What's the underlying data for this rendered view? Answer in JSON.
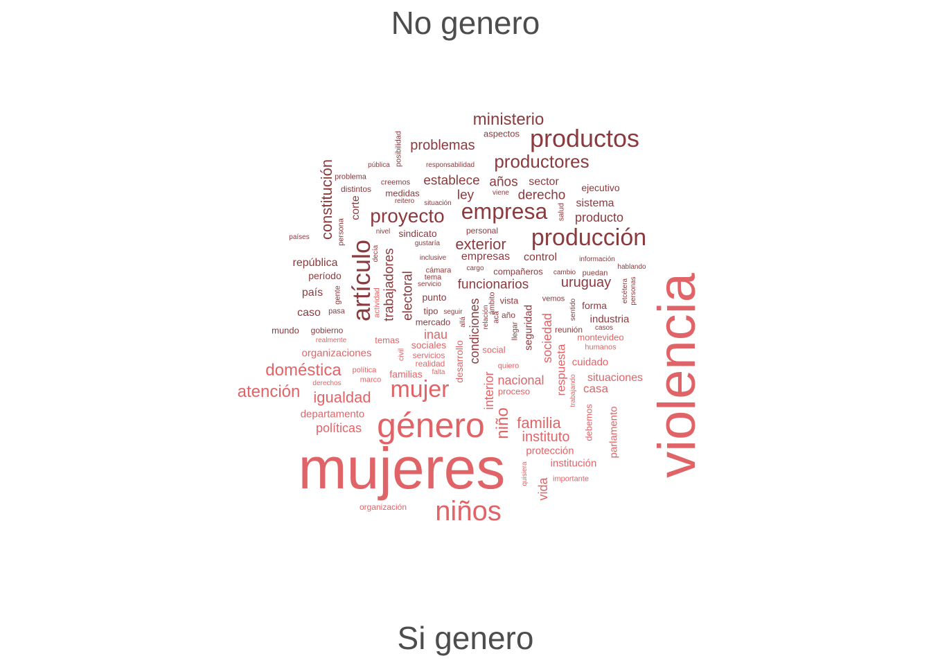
{
  "titles": {
    "top": "No genero",
    "bottom": "Si genero"
  },
  "colors": {
    "no_genero": "#8b3a3e",
    "si_genero": "#e06467",
    "title": "#4d4d4d"
  },
  "words": [
    {
      "t": "violencia",
      "g": "si",
      "s": 76,
      "r": 1
    },
    {
      "t": "mujeres",
      "g": "si",
      "s": 84,
      "r": 0
    },
    {
      "t": "género",
      "g": "si",
      "s": 50,
      "r": 0
    },
    {
      "t": "niños",
      "g": "si",
      "s": 40,
      "r": 0
    },
    {
      "t": "mujer",
      "g": "si",
      "s": 34,
      "r": 0
    },
    {
      "t": "doméstica",
      "g": "si",
      "s": 24,
      "r": 0
    },
    {
      "t": "atención",
      "g": "si",
      "s": 24,
      "r": 0
    },
    {
      "t": "igualdad",
      "g": "si",
      "s": 22,
      "r": 0
    },
    {
      "t": "familia",
      "g": "si",
      "s": 22,
      "r": 0
    },
    {
      "t": "niño",
      "g": "si",
      "s": 24,
      "r": 1
    },
    {
      "t": "instituto",
      "g": "si",
      "s": 20,
      "r": 0
    },
    {
      "t": "políticas",
      "g": "si",
      "s": 18,
      "r": 0
    },
    {
      "t": "inau",
      "g": "si",
      "s": 18,
      "r": 0
    },
    {
      "t": "departamento",
      "g": "si",
      "s": 15,
      "r": 0
    },
    {
      "t": "organizaciones",
      "g": "si",
      "s": 15,
      "r": 0
    },
    {
      "t": "protección",
      "g": "si",
      "s": 15,
      "r": 0
    },
    {
      "t": "institución",
      "g": "si",
      "s": 15,
      "r": 0
    },
    {
      "t": "vida",
      "g": "si",
      "s": 18,
      "r": 1
    },
    {
      "t": "interior",
      "g": "si",
      "s": 18,
      "r": 1
    },
    {
      "t": "nacional",
      "g": "si",
      "s": 18,
      "r": 0
    },
    {
      "t": "sociedad",
      "g": "si",
      "s": 18,
      "r": 1
    },
    {
      "t": "respuesta",
      "g": "si",
      "s": 17,
      "r": 1
    },
    {
      "t": "situaciones",
      "g": "si",
      "s": 16,
      "r": 0
    },
    {
      "t": "casa",
      "g": "si",
      "s": 17,
      "r": 0
    },
    {
      "t": "cuidado",
      "g": "si",
      "s": 15,
      "r": 0
    },
    {
      "t": "parlamento",
      "g": "si",
      "s": 15,
      "r": 1
    },
    {
      "t": "montevideo",
      "g": "si",
      "s": 13,
      "r": 0
    },
    {
      "t": "familias",
      "g": "si",
      "s": 14,
      "r": 0
    },
    {
      "t": "sociales",
      "g": "si",
      "s": 14,
      "r": 0
    },
    {
      "t": "temas",
      "g": "si",
      "s": 13,
      "r": 0
    },
    {
      "t": "social",
      "g": "si",
      "s": 13,
      "r": 0
    },
    {
      "t": "servicios",
      "g": "si",
      "s": 12,
      "r": 0
    },
    {
      "t": "realidad",
      "g": "si",
      "s": 12,
      "r": 0
    },
    {
      "t": "desarrollo",
      "g": "si",
      "s": 14,
      "r": 1
    },
    {
      "t": "proceso",
      "g": "si",
      "s": 13,
      "r": 0
    },
    {
      "t": "quiero",
      "g": "si",
      "s": 11,
      "r": 0
    },
    {
      "t": "política",
      "g": "si",
      "s": 11,
      "r": 0
    },
    {
      "t": "marco",
      "g": "si",
      "s": 11,
      "r": 0
    },
    {
      "t": "derechos",
      "g": "si",
      "s": 10,
      "r": 0
    },
    {
      "t": "falta",
      "g": "si",
      "s": 10,
      "r": 0
    },
    {
      "t": "civil",
      "g": "si",
      "s": 11,
      "r": 1
    },
    {
      "t": "organización",
      "g": "si",
      "s": 12,
      "r": 0
    },
    {
      "t": "importante",
      "g": "si",
      "s": 11,
      "r": 0
    },
    {
      "t": "quisiera",
      "g": "si",
      "s": 10,
      "r": 1
    },
    {
      "t": "debemos",
      "g": "si",
      "s": 13,
      "r": 1
    },
    {
      "t": "trabajando",
      "g": "si",
      "s": 10,
      "r": 1
    },
    {
      "t": "humanos",
      "g": "si",
      "s": 11,
      "r": 0
    },
    {
      "t": "realmente",
      "g": "si",
      "s": 10,
      "r": 0
    },
    {
      "t": "actividad",
      "g": "si",
      "s": 11,
      "r": 1
    },
    {
      "t": "productos",
      "g": "no",
      "s": 36,
      "r": 0
    },
    {
      "t": "producción",
      "g": "no",
      "s": 34,
      "r": 0
    },
    {
      "t": "empresa",
      "g": "no",
      "s": 32,
      "r": 0
    },
    {
      "t": "artículo",
      "g": "no",
      "s": 36,
      "r": 1
    },
    {
      "t": "proyecto",
      "g": "no",
      "s": 28,
      "r": 0
    },
    {
      "t": "productores",
      "g": "no",
      "s": 26,
      "r": 0
    },
    {
      "t": "ministerio",
      "g": "no",
      "s": 24,
      "r": 0
    },
    {
      "t": "constitución",
      "g": "no",
      "s": 22,
      "r": 1
    },
    {
      "t": "exterior",
      "g": "no",
      "s": 22,
      "r": 0
    },
    {
      "t": "problemas",
      "g": "no",
      "s": 20,
      "r": 0
    },
    {
      "t": "establece",
      "g": "no",
      "s": 19,
      "r": 0
    },
    {
      "t": "funcionarios",
      "g": "no",
      "s": 19,
      "r": 0
    },
    {
      "t": "uruguay",
      "g": "no",
      "s": 20,
      "r": 0
    },
    {
      "t": "años",
      "g": "no",
      "s": 19,
      "r": 0
    },
    {
      "t": "ley",
      "g": "no",
      "s": 19,
      "r": 0
    },
    {
      "t": "derecho",
      "g": "no",
      "s": 19,
      "r": 0
    },
    {
      "t": "trabajadores",
      "g": "no",
      "s": 19,
      "r": 1
    },
    {
      "t": "electoral",
      "g": "no",
      "s": 19,
      "r": 1
    },
    {
      "t": "condiciones",
      "g": "no",
      "s": 18,
      "r": 1
    },
    {
      "t": "producto",
      "g": "no",
      "s": 18,
      "r": 0
    },
    {
      "t": "sector",
      "g": "no",
      "s": 16,
      "r": 0
    },
    {
      "t": "sistema",
      "g": "no",
      "s": 16,
      "r": 0
    },
    {
      "t": "empresas",
      "g": "no",
      "s": 16,
      "r": 0
    },
    {
      "t": "control",
      "g": "no",
      "s": 16,
      "r": 0
    },
    {
      "t": "república",
      "g": "no",
      "s": 16,
      "r": 0
    },
    {
      "t": "país",
      "g": "no",
      "s": 16,
      "r": 0
    },
    {
      "t": "caso",
      "g": "no",
      "s": 16,
      "r": 0
    },
    {
      "t": "corte",
      "g": "no",
      "s": 16,
      "r": 1
    },
    {
      "t": "ejecutivo",
      "g": "no",
      "s": 14,
      "r": 0
    },
    {
      "t": "industria",
      "g": "no",
      "s": 15,
      "r": 0
    },
    {
      "t": "forma",
      "g": "no",
      "s": 14,
      "r": 0
    },
    {
      "t": "seguridad",
      "g": "no",
      "s": 15,
      "r": 1
    },
    {
      "t": "período",
      "g": "no",
      "s": 14,
      "r": 0
    },
    {
      "t": "punto",
      "g": "no",
      "s": 14,
      "r": 0
    },
    {
      "t": "sindicato",
      "g": "no",
      "s": 14,
      "r": 0
    },
    {
      "t": "medidas",
      "g": "no",
      "s": 13,
      "r": 0
    },
    {
      "t": "mercado",
      "g": "no",
      "s": 13,
      "r": 0
    },
    {
      "t": "mundo",
      "g": "no",
      "s": 13,
      "r": 0
    },
    {
      "t": "vista",
      "g": "no",
      "s": 13,
      "r": 0
    },
    {
      "t": "compañeros",
      "g": "no",
      "s": 13,
      "r": 0
    },
    {
      "t": "personal",
      "g": "no",
      "s": 12,
      "r": 0
    },
    {
      "t": "aspectos",
      "g": "no",
      "s": 13,
      "r": 0
    },
    {
      "t": "tipo",
      "g": "no",
      "s": 13,
      "r": 0
    },
    {
      "t": "gobierno",
      "g": "no",
      "s": 12,
      "r": 0
    },
    {
      "t": "creemos",
      "g": "no",
      "s": 11,
      "r": 0
    },
    {
      "t": "distintos",
      "g": "no",
      "s": 12,
      "r": 0
    },
    {
      "t": "problema",
      "g": "no",
      "s": 11,
      "r": 0
    },
    {
      "t": "persona",
      "g": "no",
      "s": 11,
      "r": 1
    },
    {
      "t": "posibilidad",
      "g": "no",
      "s": 11,
      "r": 1
    },
    {
      "t": "pública",
      "g": "no",
      "s": 10,
      "r": 0
    },
    {
      "t": "responsabilidad",
      "g": "no",
      "s": 10,
      "r": 0
    },
    {
      "t": "reitero",
      "g": "no",
      "s": 10,
      "r": 0
    },
    {
      "t": "situación",
      "g": "no",
      "s": 10,
      "r": 0
    },
    {
      "t": "viene",
      "g": "no",
      "s": 10,
      "r": 0
    },
    {
      "t": "nivel",
      "g": "no",
      "s": 10,
      "r": 0
    },
    {
      "t": "salud",
      "g": "no",
      "s": 11,
      "r": 1
    },
    {
      "t": "gustaría",
      "g": "no",
      "s": 10,
      "r": 0
    },
    {
      "t": "decía",
      "g": "no",
      "s": 10,
      "r": 1
    },
    {
      "t": "inclusive",
      "g": "no",
      "s": 10,
      "r": 0
    },
    {
      "t": "países",
      "g": "no",
      "s": 10,
      "r": 0
    },
    {
      "t": "cámara",
      "g": "no",
      "s": 11,
      "r": 0
    },
    {
      "t": "tema",
      "g": "no",
      "s": 11,
      "r": 0
    },
    {
      "t": "servicio",
      "g": "no",
      "s": 10,
      "r": 0
    },
    {
      "t": "cargo",
      "g": "no",
      "s": 10,
      "r": 0
    },
    {
      "t": "información",
      "g": "no",
      "s": 10,
      "r": 0
    },
    {
      "t": "cambio",
      "g": "no",
      "s": 10,
      "r": 0
    },
    {
      "t": "puedan",
      "g": "no",
      "s": 11,
      "r": 0
    },
    {
      "t": "hablando",
      "g": "no",
      "s": 10,
      "r": 0
    },
    {
      "t": "etcétera",
      "g": "no",
      "s": 10,
      "r": 1
    },
    {
      "t": "personas",
      "g": "no",
      "s": 10,
      "r": 1
    },
    {
      "t": "gente",
      "g": "no",
      "s": 11,
      "r": 1
    },
    {
      "t": "pasa",
      "g": "no",
      "s": 11,
      "r": 0
    },
    {
      "t": "seguir",
      "g": "no",
      "s": 10,
      "r": 0
    },
    {
      "t": "allá",
      "g": "no",
      "s": 10,
      "r": 1
    },
    {
      "t": "acá",
      "g": "no",
      "s": 11,
      "r": 1
    },
    {
      "t": "relación",
      "g": "no",
      "s": 10,
      "r": 1
    },
    {
      "t": "ámbito",
      "g": "no",
      "s": 11,
      "r": 1
    },
    {
      "t": "año",
      "g": "no",
      "s": 12,
      "r": 0
    },
    {
      "t": "llegar",
      "g": "no",
      "s": 11,
      "r": 1
    },
    {
      "t": "vemos",
      "g": "no",
      "s": 11,
      "r": 0
    },
    {
      "t": "reunión",
      "g": "no",
      "s": 12,
      "r": 0
    },
    {
      "t": "sentido",
      "g": "no",
      "s": 10,
      "r": 1
    },
    {
      "t": "casos",
      "g": "no",
      "s": 10,
      "r": 0
    }
  ]
}
